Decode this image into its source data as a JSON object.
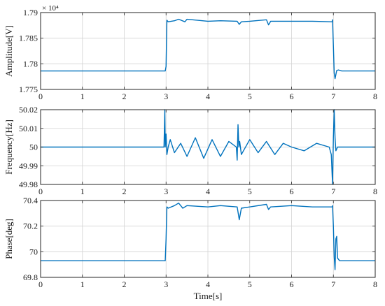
{
  "colors": {
    "series": "#0072BD",
    "axis": "#262626",
    "grid": "#d4d4d4",
    "background": "#ffffff"
  },
  "chart_data": [
    {
      "type": "line",
      "xlabel": "",
      "ylabel": "Amplitude[V]",
      "exponent_label": "× 10⁴",
      "xlim": [
        0,
        8
      ],
      "ylim": [
        1.775,
        1.79
      ],
      "xticks": [
        "0",
        "1",
        "2",
        "3",
        "4",
        "5",
        "6",
        "7",
        "8"
      ],
      "yticks": [
        "1.775",
        "1.78",
        "1.785",
        "1.79"
      ],
      "grid": true,
      "series": [
        {
          "x": [
            0,
            1,
            2,
            2.97,
            2.98,
            3.0,
            3.02,
            3.05,
            3.2,
            3.3,
            3.45,
            3.5,
            4.0,
            4.3,
            4.7,
            4.75,
            4.8,
            5.0,
            5.4,
            5.45,
            5.5,
            6.0,
            6.5,
            6.97,
            6.98,
            7.0,
            7.02,
            7.04,
            7.06,
            7.08,
            7.12,
            7.2,
            7.5,
            8.0
          ],
          "y": [
            1.7786,
            1.7786,
            1.7786,
            1.7786,
            1.7786,
            1.7795,
            1.7885,
            1.7882,
            1.7884,
            1.7887,
            1.7882,
            1.7887,
            1.7883,
            1.7884,
            1.7883,
            1.7877,
            1.7882,
            1.7883,
            1.7886,
            1.7876,
            1.7883,
            1.7883,
            1.7883,
            1.7882,
            1.7886,
            1.7835,
            1.7782,
            1.7771,
            1.7779,
            1.7787,
            1.7788,
            1.7786,
            1.7786,
            1.7786
          ]
        }
      ]
    },
    {
      "type": "line",
      "xlabel": "",
      "ylabel": "Frequency[Hz]",
      "xlim": [
        0,
        8
      ],
      "ylim": [
        49.98,
        50.02
      ],
      "xticks": [
        "0",
        "1",
        "2",
        "3",
        "4",
        "5",
        "6",
        "7",
        "8"
      ],
      "yticks": [
        "49.98",
        "49.99",
        "50",
        "50.01",
        "50.02"
      ],
      "grid": true,
      "series": [
        {
          "x": [
            0,
            1,
            2,
            2.95,
            2.97,
            2.98,
            3.0,
            3.02,
            3.05,
            3.1,
            3.2,
            3.35,
            3.5,
            3.7,
            3.9,
            4.1,
            4.3,
            4.5,
            4.68,
            4.7,
            4.72,
            4.74,
            4.76,
            4.8,
            5.0,
            5.2,
            5.4,
            5.6,
            5.8,
            6.0,
            6.3,
            6.6,
            6.9,
            6.95,
            6.98,
            7.0,
            7.02,
            7.04,
            7.06,
            7.1,
            7.2,
            7.5,
            8.0
          ],
          "y": [
            50.0,
            50.0,
            50.0,
            50.0,
            50.02,
            50.0,
            50.007,
            49.996,
            50.0,
            50.004,
            49.997,
            50.002,
            49.995,
            50.005,
            49.994,
            50.004,
            49.995,
            50.003,
            50.0,
            49.993,
            50.012,
            50.0,
            50.003,
            49.996,
            50.004,
            49.997,
            50.003,
            49.996,
            50.002,
            50.0,
            49.998,
            50.002,
            50.0,
            49.996,
            49.98,
            50.005,
            50.02,
            50.005,
            49.998,
            50.0,
            50.0,
            50.0,
            50.0
          ]
        }
      ]
    },
    {
      "type": "line",
      "xlabel": "Time[s]",
      "ylabel": "Phase[deg]",
      "xlim": [
        0,
        8
      ],
      "ylim": [
        69.8,
        70.4
      ],
      "xticks": [
        "0",
        "1",
        "2",
        "3",
        "4",
        "5",
        "6",
        "7",
        "8"
      ],
      "yticks": [
        "69.8",
        "70",
        "70.2",
        "70.4"
      ],
      "grid": true,
      "series": [
        {
          "x": [
            0,
            1,
            2,
            2.97,
            2.98,
            3.0,
            3.02,
            3.05,
            3.2,
            3.3,
            3.4,
            3.5,
            4.0,
            4.3,
            4.7,
            4.75,
            4.8,
            5.0,
            5.4,
            5.45,
            5.5,
            6.0,
            6.5,
            6.97,
            6.98,
            7.0,
            7.02,
            7.04,
            7.06,
            7.08,
            7.1,
            7.15,
            7.2,
            7.5,
            8.0
          ],
          "y": [
            69.93,
            69.93,
            69.93,
            69.93,
            69.93,
            70.1,
            70.35,
            70.34,
            70.36,
            70.38,
            70.34,
            70.36,
            70.35,
            70.36,
            70.35,
            70.25,
            70.34,
            70.35,
            70.37,
            70.33,
            70.35,
            70.36,
            70.35,
            70.35,
            70.36,
            70.2,
            69.96,
            69.86,
            70.1,
            70.12,
            69.95,
            69.93,
            69.93,
            69.93,
            69.93
          ]
        }
      ]
    }
  ]
}
